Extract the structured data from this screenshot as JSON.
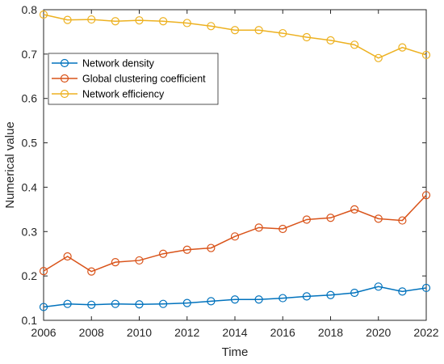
{
  "chart_data": {
    "type": "line",
    "xlabel": "Time",
    "ylabel": "Numerical value",
    "xlim": [
      2006,
      2022
    ],
    "ylim": [
      0.1,
      0.8
    ],
    "xticks": [
      "2006",
      "2008",
      "2010",
      "2012",
      "2014",
      "2016",
      "2018",
      "2020",
      "2022"
    ],
    "yticks": [
      "0.1",
      "0.2",
      "0.3",
      "0.4",
      "0.5",
      "0.6",
      "0.7",
      "0.8"
    ],
    "legend_position": "upper-left",
    "grid": false,
    "x": [
      2006,
      2007,
      2008,
      2009,
      2010,
      2011,
      2012,
      2013,
      2014,
      2015,
      2016,
      2017,
      2018,
      2019,
      2020,
      2021,
      2022
    ],
    "series": [
      {
        "name": "Network density",
        "color": "#0072BD",
        "values": [
          0.13,
          0.137,
          0.135,
          0.137,
          0.136,
          0.137,
          0.139,
          0.143,
          0.147,
          0.147,
          0.15,
          0.154,
          0.157,
          0.162,
          0.176,
          0.165,
          0.173
        ]
      },
      {
        "name": "Global clustering coefficient",
        "color": "#D95319",
        "values": [
          0.211,
          0.244,
          0.21,
          0.231,
          0.235,
          0.25,
          0.259,
          0.263,
          0.289,
          0.309,
          0.306,
          0.327,
          0.331,
          0.35,
          0.329,
          0.325,
          0.382
        ]
      },
      {
        "name": "Network efficiency",
        "color": "#EDB120",
        "values": [
          0.789,
          0.777,
          0.778,
          0.774,
          0.776,
          0.774,
          0.77,
          0.763,
          0.754,
          0.754,
          0.747,
          0.738,
          0.731,
          0.721,
          0.691,
          0.715,
          0.698
        ]
      }
    ]
  }
}
